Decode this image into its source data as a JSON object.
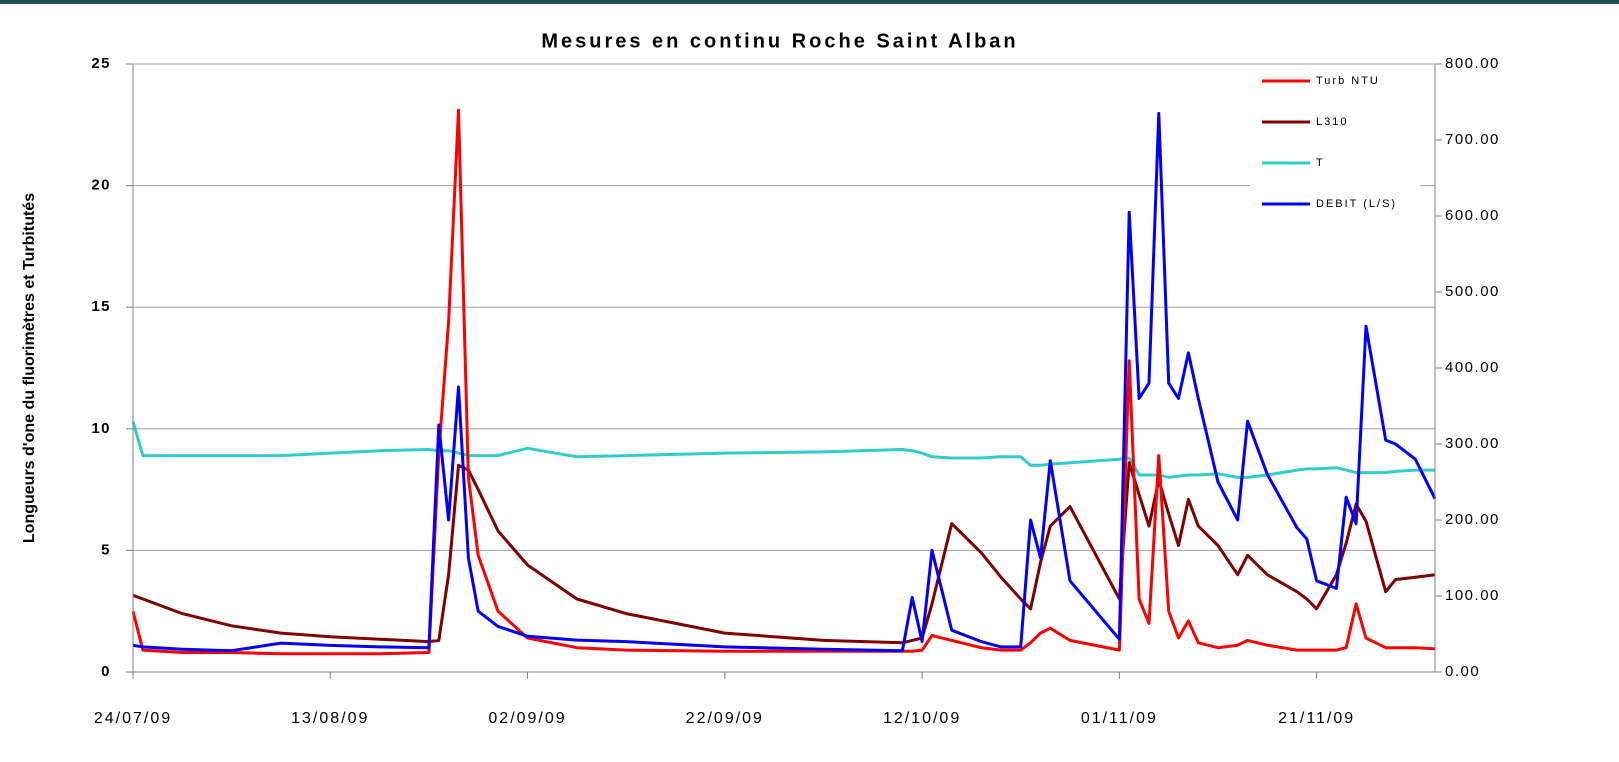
{
  "chart_data": {
    "type": "line",
    "title": "Mesures en continu Roche Saint Alban",
    "y_label": "Longueurs d'one du fluorimètres et Turbitutés",
    "x": [
      "24/07/09",
      "25/07/09",
      "29/07/09",
      "03/08/09",
      "08/08/09",
      "13/08/09",
      "18/08/09",
      "23/08/09",
      "24/08/09",
      "25/08/09",
      "26/08/09",
      "27/08/09",
      "28/08/09",
      "30/08/09",
      "02/09/09",
      "07/09/09",
      "12/09/09",
      "22/09/09",
      "02/10/09",
      "10/10/09",
      "11/10/09",
      "12/10/09",
      "13/10/09",
      "15/10/09",
      "18/10/09",
      "20/10/09",
      "22/10/09",
      "23/10/09",
      "24/10/09",
      "25/10/09",
      "27/10/09",
      "01/11/09",
      "02/11/09",
      "03/11/09",
      "04/11/09",
      "05/11/09",
      "06/11/09",
      "07/11/09",
      "08/11/09",
      "09/11/09",
      "11/11/09",
      "13/11/09",
      "14/11/09",
      "16/11/09",
      "19/11/09",
      "20/11/09",
      "21/11/09",
      "23/11/09",
      "24/11/09",
      "25/11/09",
      "26/11/09",
      "28/11/09",
      "29/11/09",
      "01/12/09",
      "03/12/09"
    ],
    "xlim": [
      "24/07/09",
      "03/12/09"
    ],
    "xticks": [
      "24/07/09",
      "13/08/09",
      "02/09/09",
      "22/09/09",
      "12/10/09",
      "01/11/09",
      "21/11/09"
    ],
    "ylim": [
      0,
      25
    ],
    "yticks": [
      0,
      5,
      10,
      15,
      20,
      25
    ],
    "y2lim": [
      0,
      800
    ],
    "y2ticks": [
      {
        "value": 0,
        "label": "0.00"
      },
      {
        "value": 100,
        "label": "100.00"
      },
      {
        "value": 200,
        "label": "200.00"
      },
      {
        "value": 300,
        "label": "300.00"
      },
      {
        "value": 400,
        "label": "400.00"
      },
      {
        "value": 500,
        "label": "500.00"
      },
      {
        "value": 600,
        "label": "600.00"
      },
      {
        "value": 700,
        "label": "700.00"
      },
      {
        "value": 800,
        "label": "800.00"
      }
    ],
    "grid": true,
    "legend": "upper right",
    "series": [
      {
        "name": "Turb NTU",
        "color": "#ff0000",
        "values": [
          2.5,
          0.9,
          0.8,
          0.8,
          0.75,
          0.75,
          0.75,
          0.8,
          9,
          14.4,
          23.1,
          8,
          4.8,
          2.5,
          1.4,
          1.0,
          0.9,
          0.85,
          0.85,
          0.85,
          0.85,
          0.9,
          1.5,
          1.3,
          1.0,
          0.9,
          0.9,
          1.2,
          1.6,
          1.8,
          1.3,
          0.9,
          12.8,
          3,
          2,
          8.9,
          2.5,
          1.4,
          2.1,
          1.2,
          1.0,
          1.1,
          1.3,
          1.1,
          0.9,
          0.9,
          0.9,
          0.9,
          1.0,
          2.8,
          1.4,
          1.0,
          1.0,
          1.0,
          0.95
        ]
      },
      {
        "name": "L310",
        "color": "#800000",
        "values": [
          3.15,
          3.0,
          2.4,
          1.9,
          1.6,
          1.45,
          1.35,
          1.25,
          1.3,
          4,
          8.5,
          8.3,
          7.5,
          5.8,
          4.4,
          3.0,
          2.4,
          1.6,
          1.3,
          1.2,
          1.3,
          1.4,
          2.8,
          6.1,
          4.9,
          3.9,
          3.0,
          2.6,
          4.5,
          6.0,
          6.8,
          3.0,
          8.6,
          7.3,
          6.0,
          7.9,
          6.5,
          5.2,
          7.1,
          6.0,
          5.2,
          4.0,
          4.8,
          4.0,
          3.3,
          3.0,
          2.6,
          4.0,
          5.3,
          6.9,
          6.2,
          3.3,
          3.8,
          3.9,
          4.0
        ]
      },
      {
        "name": "T",
        "color": "#33cccc",
        "values": [
          10.3,
          8.9,
          8.9,
          8.9,
          8.9,
          9.0,
          9.1,
          9.15,
          9.1,
          9.1,
          9.0,
          8.9,
          8.9,
          8.9,
          9.2,
          8.85,
          8.9,
          9.0,
          9.05,
          9.15,
          9.1,
          9.0,
          8.85,
          8.8,
          8.8,
          8.85,
          8.85,
          8.5,
          8.5,
          8.55,
          8.6,
          8.75,
          8.8,
          8.1,
          8.1,
          8.1,
          8.0,
          8.05,
          8.1,
          8.1,
          8.15,
          8.0,
          8.0,
          8.1,
          8.3,
          8.35,
          8.35,
          8.4,
          8.3,
          8.2,
          8.2,
          8.2,
          8.25,
          8.3,
          8.3
        ]
      },
      {
        "name": "DEBIT (L/S)",
        "color": "#0000ff",
        "axis": "y2",
        "values": [
          35,
          33,
          30,
          28,
          38,
          35,
          33,
          32,
          325,
          200,
          375,
          150,
          80,
          60,
          47,
          42,
          40,
          33,
          30,
          28,
          98,
          40,
          160,
          55,
          40,
          33,
          33,
          200,
          150,
          278,
          120,
          43,
          605,
          360,
          380,
          735,
          380,
          360,
          420,
          360,
          250,
          200,
          330,
          260,
          190,
          175,
          120,
          110,
          230,
          195,
          455,
          305,
          300,
          280,
          228
        ]
      }
    ]
  }
}
